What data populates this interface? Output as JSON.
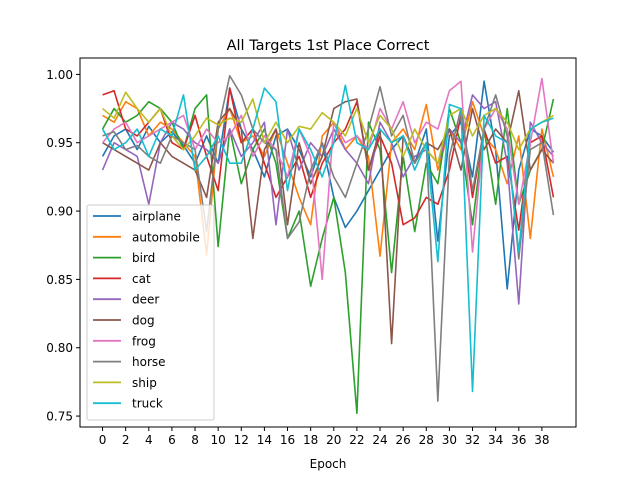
{
  "chart_data": {
    "type": "line",
    "title": "All Targets 1st Place Correct",
    "xlabel": "Epoch",
    "ylabel": "",
    "xlim": [
      -1.95,
      40.95
    ],
    "ylim": [
      0.742,
      1.012
    ],
    "x_ticks": [
      0,
      2,
      4,
      6,
      8,
      10,
      12,
      14,
      16,
      18,
      20,
      22,
      24,
      26,
      28,
      30,
      32,
      34,
      36,
      38
    ],
    "x_tick_labels": [
      "0",
      "2",
      "4",
      "6",
      "8",
      "10",
      "12",
      "14",
      "16",
      "18",
      "20",
      "22",
      "24",
      "26",
      "28",
      "30",
      "32",
      "34",
      "36",
      "38"
    ],
    "y_ticks": [
      0.75,
      0.8,
      0.85,
      0.9,
      0.95,
      1.0
    ],
    "y_tick_labels": [
      "0.75",
      "0.80",
      "0.85",
      "0.90",
      "0.95",
      "1.00"
    ],
    "grid": false,
    "legend_position": "lower-left",
    "x": [
      0,
      1,
      2,
      3,
      4,
      5,
      6,
      7,
      8,
      9,
      10,
      11,
      12,
      13,
      14,
      15,
      16,
      17,
      18,
      19,
      20,
      21,
      22,
      23,
      24,
      25,
      26,
      27,
      28,
      29,
      30,
      31,
      32,
      33,
      34,
      35,
      36,
      37,
      38,
      39
    ],
    "series": [
      {
        "name": "airplane",
        "color": "#1f77b4",
        "values": [
          0.94,
          0.955,
          0.96,
          0.945,
          0.962,
          0.95,
          0.958,
          0.948,
          0.935,
          0.955,
          0.935,
          0.99,
          0.96,
          0.945,
          0.925,
          0.955,
          0.96,
          0.945,
          0.925,
          0.95,
          0.91,
          0.888,
          0.9,
          0.915,
          0.93,
          0.945,
          0.955,
          0.935,
          0.96,
          0.878,
          0.955,
          0.965,
          0.925,
          0.995,
          0.945,
          0.843,
          0.93,
          0.96,
          0.955,
          0.943
        ]
      },
      {
        "name": "automobile",
        "color": "#ff7f0e",
        "values": [
          0.97,
          0.965,
          0.98,
          0.975,
          0.955,
          0.965,
          0.96,
          0.95,
          0.94,
          0.868,
          0.96,
          0.975,
          0.95,
          0.955,
          0.94,
          0.96,
          0.935,
          0.91,
          0.89,
          0.955,
          0.965,
          0.945,
          0.955,
          0.94,
          0.867,
          0.95,
          0.96,
          0.945,
          0.978,
          0.93,
          0.96,
          0.945,
          0.98,
          0.955,
          0.945,
          0.92,
          0.955,
          0.88,
          0.96,
          0.925
        ]
      },
      {
        "name": "bird",
        "color": "#2ca02c",
        "values": [
          0.96,
          0.975,
          0.965,
          0.97,
          0.98,
          0.975,
          0.965,
          0.945,
          0.975,
          0.985,
          0.874,
          0.96,
          0.92,
          0.945,
          0.96,
          0.935,
          0.88,
          0.9,
          0.845,
          0.88,
          0.91,
          0.855,
          0.752,
          0.965,
          0.945,
          0.855,
          0.94,
          0.885,
          0.935,
          0.92,
          0.975,
          0.95,
          0.89,
          0.96,
          0.905,
          0.975,
          0.905,
          0.93,
          0.945,
          0.982
        ]
      },
      {
        "name": "cat",
        "color": "#d62728",
        "values": [
          0.985,
          0.988,
          0.96,
          0.955,
          0.965,
          0.975,
          0.95,
          0.945,
          0.97,
          0.94,
          0.915,
          0.99,
          0.95,
          0.96,
          0.935,
          0.91,
          0.925,
          0.94,
          0.91,
          0.935,
          0.95,
          0.96,
          0.98,
          0.93,
          0.955,
          0.935,
          0.89,
          0.895,
          0.91,
          0.905,
          0.93,
          0.97,
          0.91,
          0.96,
          0.935,
          0.94,
          0.886,
          0.95,
          0.955,
          0.91
        ]
      },
      {
        "name": "deer",
        "color": "#9467bd",
        "values": [
          0.93,
          0.95,
          0.945,
          0.94,
          0.905,
          0.95,
          0.965,
          0.96,
          0.95,
          0.945,
          0.935,
          0.96,
          0.94,
          0.95,
          0.965,
          0.89,
          0.96,
          0.93,
          0.95,
          0.94,
          0.96,
          0.945,
          0.935,
          0.92,
          0.965,
          0.95,
          0.925,
          0.94,
          0.945,
          0.935,
          0.96,
          0.95,
          0.985,
          0.975,
          0.98,
          0.935,
          0.832,
          0.965,
          0.95,
          0.94
        ]
      },
      {
        "name": "dog",
        "color": "#8c564b",
        "values": [
          0.95,
          0.945,
          0.94,
          0.935,
          0.93,
          0.95,
          0.94,
          0.935,
          0.93,
          0.91,
          0.965,
          0.975,
          0.96,
          0.88,
          0.945,
          0.96,
          0.89,
          0.95,
          0.92,
          0.94,
          0.975,
          0.98,
          0.982,
          0.93,
          0.96,
          0.803,
          0.955,
          0.935,
          0.95,
          0.945,
          0.96,
          0.93,
          0.975,
          0.945,
          0.96,
          0.95,
          0.988,
          0.93,
          0.945,
          0.935
        ]
      },
      {
        "name": "frog",
        "color": "#e377c2",
        "values": [
          0.95,
          0.96,
          0.965,
          0.95,
          0.955,
          0.96,
          0.965,
          0.97,
          0.945,
          0.96,
          0.95,
          0.955,
          0.97,
          0.94,
          0.955,
          0.945,
          0.925,
          0.96,
          0.94,
          0.85,
          0.965,
          0.95,
          0.955,
          0.945,
          0.975,
          0.96,
          0.98,
          0.95,
          0.965,
          0.96,
          0.988,
          0.995,
          0.87,
          0.96,
          0.975,
          0.96,
          0.905,
          0.95,
          0.997,
          0.935
        ]
      },
      {
        "name": "horse",
        "color": "#7f7f7f",
        "values": [
          0.955,
          0.958,
          0.945,
          0.948,
          0.94,
          0.935,
          0.955,
          0.95,
          0.945,
          0.885,
          0.96,
          0.999,
          0.985,
          0.96,
          0.95,
          0.945,
          0.88,
          0.892,
          0.93,
          0.95,
          0.925,
          0.91,
          0.935,
          0.96,
          0.991,
          0.955,
          0.97,
          0.935,
          0.95,
          0.761,
          0.94,
          0.975,
          0.915,
          0.96,
          0.985,
          0.955,
          0.865,
          0.945,
          0.95,
          0.897
        ]
      },
      {
        "name": "ship",
        "color": "#bcbd22",
        "values": [
          0.975,
          0.968,
          0.987,
          0.975,
          0.965,
          0.975,
          0.955,
          0.945,
          0.955,
          0.968,
          0.963,
          0.968,
          0.965,
          0.982,
          0.95,
          0.965,
          0.95,
          0.962,
          0.96,
          0.972,
          0.965,
          0.955,
          0.975,
          0.95,
          0.97,
          0.96,
          0.94,
          0.96,
          0.945,
          0.935,
          0.97,
          0.975,
          0.955,
          0.97,
          0.975,
          0.965,
          0.945,
          0.96,
          0.965,
          0.97
        ]
      },
      {
        "name": "truck",
        "color": "#17becf",
        "values": [
          0.96,
          0.945,
          0.95,
          0.96,
          0.94,
          0.96,
          0.955,
          0.985,
          0.93,
          0.94,
          0.955,
          0.935,
          0.935,
          0.96,
          0.99,
          0.98,
          0.915,
          0.96,
          0.945,
          0.925,
          0.95,
          0.992,
          0.95,
          0.945,
          0.96,
          0.95,
          0.955,
          0.93,
          0.95,
          0.863,
          0.978,
          0.975,
          0.768,
          0.97,
          0.955,
          0.95,
          0.87,
          0.96,
          0.965,
          0.968
        ]
      }
    ]
  }
}
